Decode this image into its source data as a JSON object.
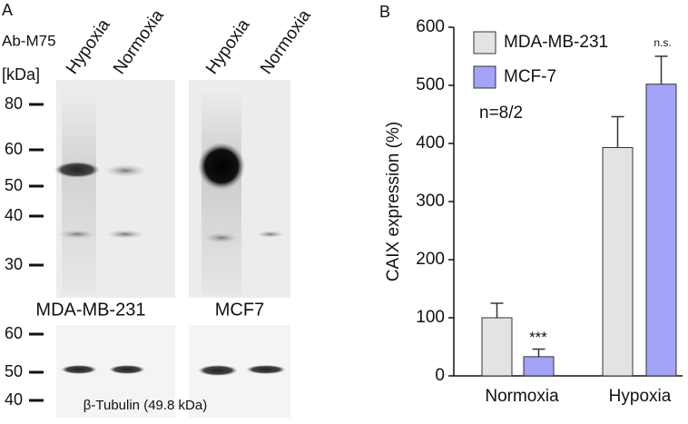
{
  "panel_a": {
    "label": "A",
    "antibody": "Ab-M75",
    "unit": "[kDa]",
    "lanes": [
      "Hypoxia",
      "Normoxia",
      "Hypoxia",
      "Normoxia"
    ],
    "markers_upper": [
      80,
      60,
      50,
      40,
      30
    ],
    "cell_lines": [
      "MDA-MB-231",
      "MCF7"
    ],
    "markers_lower": [
      60,
      50,
      40
    ],
    "loading_control": "β-Tubulin (49.8 kDa)"
  },
  "chart_data": {
    "type": "bar",
    "panel_label": "B",
    "ylabel": "CAIX expression (%)",
    "categories": [
      "Normoxia",
      "Hypoxia"
    ],
    "series": [
      {
        "name": "MDA-MB-231",
        "color": "#e3e3e3",
        "values": [
          100,
          393
        ],
        "errors": [
          25,
          53
        ]
      },
      {
        "name": "MCF-7",
        "color": "#a3a3f7",
        "values": [
          33,
          502
        ],
        "errors": [
          13,
          48
        ]
      }
    ],
    "annotations": [
      "n=8/2",
      "***",
      "n.s."
    ],
    "ylim": [
      0,
      600
    ],
    "yticks": [
      0,
      100,
      200,
      300,
      400,
      500,
      600
    ]
  }
}
